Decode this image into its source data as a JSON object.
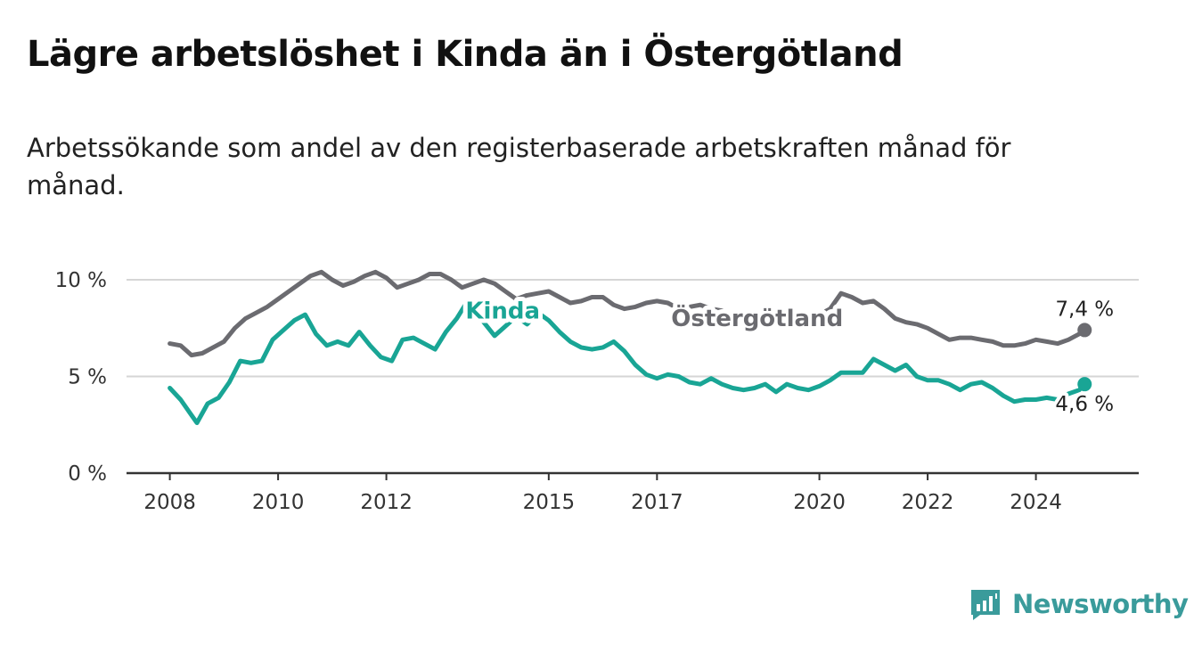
{
  "title": "Lägre arbetslöshet i Kinda än i Östergötland",
  "subtitle": "Arbetssökande som andel av den registerbaserade arbetskraften månad för månad.",
  "brand": {
    "name": "Newsworthy",
    "icon": "bar-chart-logo-icon",
    "color": "#3a9b9b"
  },
  "chart_data": {
    "type": "line",
    "x_axis": {
      "range": [
        2007.2,
        2025.9
      ],
      "ticks": [
        2008,
        2010,
        2012,
        2015,
        2017,
        2020,
        2022,
        2024
      ],
      "tick_labels": [
        "2008",
        "2010",
        "2012",
        "2015",
        "2017",
        "2020",
        "2022",
        "2024"
      ]
    },
    "y_axis": {
      "range": [
        0,
        10
      ],
      "ticks": [
        0,
        5,
        10
      ],
      "tick_labels": [
        "0 %",
        "5 %",
        "10 %"
      ],
      "unit": "%"
    },
    "grid": "horizontal",
    "series": [
      {
        "name": "Östergötland",
        "color": "#6b6b70",
        "end_label": "7,4 %",
        "points": [
          [
            2008.0,
            6.7
          ],
          [
            2008.2,
            6.6
          ],
          [
            2008.4,
            6.1
          ],
          [
            2008.6,
            6.2
          ],
          [
            2008.8,
            6.5
          ],
          [
            2009.0,
            6.8
          ],
          [
            2009.2,
            7.5
          ],
          [
            2009.4,
            8.0
          ],
          [
            2009.6,
            8.3
          ],
          [
            2009.8,
            8.6
          ],
          [
            2010.0,
            9.0
          ],
          [
            2010.2,
            9.4
          ],
          [
            2010.4,
            9.8
          ],
          [
            2010.6,
            10.2
          ],
          [
            2010.8,
            10.4
          ],
          [
            2011.0,
            10.0
          ],
          [
            2011.2,
            9.7
          ],
          [
            2011.4,
            9.9
          ],
          [
            2011.6,
            10.2
          ],
          [
            2011.8,
            10.4
          ],
          [
            2012.0,
            10.1
          ],
          [
            2012.2,
            9.6
          ],
          [
            2012.4,
            9.8
          ],
          [
            2012.6,
            10.0
          ],
          [
            2012.8,
            10.3
          ],
          [
            2013.0,
            10.3
          ],
          [
            2013.2,
            10.0
          ],
          [
            2013.4,
            9.6
          ],
          [
            2013.6,
            9.8
          ],
          [
            2013.8,
            10.0
          ],
          [
            2014.0,
            9.8
          ],
          [
            2014.2,
            9.4
          ],
          [
            2014.4,
            9.0
          ],
          [
            2014.6,
            9.2
          ],
          [
            2014.8,
            9.3
          ],
          [
            2015.0,
            9.4
          ],
          [
            2015.2,
            9.1
          ],
          [
            2015.4,
            8.8
          ],
          [
            2015.6,
            8.9
          ],
          [
            2015.8,
            9.1
          ],
          [
            2016.0,
            9.1
          ],
          [
            2016.2,
            8.7
          ],
          [
            2016.4,
            8.5
          ],
          [
            2016.6,
            8.6
          ],
          [
            2016.8,
            8.8
          ],
          [
            2017.0,
            8.9
          ],
          [
            2017.2,
            8.8
          ],
          [
            2017.4,
            8.5
          ],
          [
            2017.6,
            8.6
          ],
          [
            2017.8,
            8.7
          ],
          [
            2018.0,
            8.5
          ],
          [
            2018.2,
            8.4
          ],
          [
            2018.4,
            8.0
          ],
          [
            2018.6,
            8.1
          ],
          [
            2018.8,
            8.3
          ],
          [
            2019.0,
            8.3
          ],
          [
            2019.2,
            8.1
          ],
          [
            2019.4,
            7.9
          ],
          [
            2019.6,
            8.0
          ],
          [
            2019.8,
            8.2
          ],
          [
            2020.0,
            8.2
          ],
          [
            2020.2,
            8.5
          ],
          [
            2020.4,
            9.3
          ],
          [
            2020.6,
            9.1
          ],
          [
            2020.8,
            8.8
          ],
          [
            2021.0,
            8.9
          ],
          [
            2021.2,
            8.5
          ],
          [
            2021.4,
            8.0
          ],
          [
            2021.6,
            7.8
          ],
          [
            2021.8,
            7.7
          ],
          [
            2022.0,
            7.5
          ],
          [
            2022.2,
            7.2
          ],
          [
            2022.4,
            6.9
          ],
          [
            2022.6,
            7.0
          ],
          [
            2022.8,
            7.0
          ],
          [
            2023.0,
            6.9
          ],
          [
            2023.2,
            6.8
          ],
          [
            2023.4,
            6.6
          ],
          [
            2023.6,
            6.6
          ],
          [
            2023.8,
            6.7
          ],
          [
            2024.0,
            6.9
          ],
          [
            2024.2,
            6.8
          ],
          [
            2024.4,
            6.7
          ],
          [
            2024.6,
            6.9
          ],
          [
            2024.8,
            7.2
          ],
          [
            2024.9,
            7.4
          ]
        ]
      },
      {
        "name": "Kinda",
        "color": "#19a595",
        "end_label": "4,6 %",
        "points": [
          [
            2008.0,
            4.4
          ],
          [
            2008.2,
            3.8
          ],
          [
            2008.4,
            3.0
          ],
          [
            2008.5,
            2.6
          ],
          [
            2008.7,
            3.6
          ],
          [
            2008.9,
            3.9
          ],
          [
            2009.1,
            4.7
          ],
          [
            2009.3,
            5.8
          ],
          [
            2009.5,
            5.7
          ],
          [
            2009.7,
            5.8
          ],
          [
            2009.9,
            6.9
          ],
          [
            2010.1,
            7.4
          ],
          [
            2010.3,
            7.9
          ],
          [
            2010.5,
            8.2
          ],
          [
            2010.7,
            7.2
          ],
          [
            2010.9,
            6.6
          ],
          [
            2011.1,
            6.8
          ],
          [
            2011.3,
            6.6
          ],
          [
            2011.5,
            7.3
          ],
          [
            2011.7,
            6.6
          ],
          [
            2011.9,
            6.0
          ],
          [
            2012.1,
            5.8
          ],
          [
            2012.3,
            6.9
          ],
          [
            2012.5,
            7.0
          ],
          [
            2012.7,
            6.7
          ],
          [
            2012.9,
            6.4
          ],
          [
            2013.1,
            7.3
          ],
          [
            2013.3,
            8.0
          ],
          [
            2013.5,
            8.9
          ],
          [
            2013.6,
            8.5
          ],
          [
            2013.8,
            7.8
          ],
          [
            2014.0,
            7.1
          ],
          [
            2014.2,
            7.6
          ],
          [
            2014.4,
            8.1
          ],
          [
            2014.6,
            7.7
          ],
          [
            2014.8,
            8.3
          ],
          [
            2015.0,
            7.9
          ],
          [
            2015.2,
            7.3
          ],
          [
            2015.4,
            6.8
          ],
          [
            2015.6,
            6.5
          ],
          [
            2015.8,
            6.4
          ],
          [
            2016.0,
            6.5
          ],
          [
            2016.2,
            6.8
          ],
          [
            2016.4,
            6.3
          ],
          [
            2016.6,
            5.6
          ],
          [
            2016.8,
            5.1
          ],
          [
            2017.0,
            4.9
          ],
          [
            2017.2,
            5.1
          ],
          [
            2017.4,
            5.0
          ],
          [
            2017.6,
            4.7
          ],
          [
            2017.8,
            4.6
          ],
          [
            2018.0,
            4.9
          ],
          [
            2018.2,
            4.6
          ],
          [
            2018.4,
            4.4
          ],
          [
            2018.6,
            4.3
          ],
          [
            2018.8,
            4.4
          ],
          [
            2019.0,
            4.6
          ],
          [
            2019.2,
            4.2
          ],
          [
            2019.4,
            4.6
          ],
          [
            2019.6,
            4.4
          ],
          [
            2019.8,
            4.3
          ],
          [
            2020.0,
            4.5
          ],
          [
            2020.2,
            4.8
          ],
          [
            2020.4,
            5.2
          ],
          [
            2020.6,
            5.2
          ],
          [
            2020.8,
            5.2
          ],
          [
            2021.0,
            5.9
          ],
          [
            2021.2,
            5.6
          ],
          [
            2021.4,
            5.3
          ],
          [
            2021.6,
            5.6
          ],
          [
            2021.8,
            5.0
          ],
          [
            2022.0,
            4.8
          ],
          [
            2022.2,
            4.8
          ],
          [
            2022.4,
            4.6
          ],
          [
            2022.6,
            4.3
          ],
          [
            2022.8,
            4.6
          ],
          [
            2023.0,
            4.7
          ],
          [
            2023.2,
            4.4
          ],
          [
            2023.4,
            4.0
          ],
          [
            2023.6,
            3.7
          ],
          [
            2023.8,
            3.8
          ],
          [
            2024.0,
            3.8
          ],
          [
            2024.2,
            3.9
          ],
          [
            2024.4,
            3.8
          ],
          [
            2024.6,
            4.1
          ],
          [
            2024.8,
            4.3
          ],
          [
            2024.9,
            4.6
          ]
        ]
      }
    ]
  }
}
